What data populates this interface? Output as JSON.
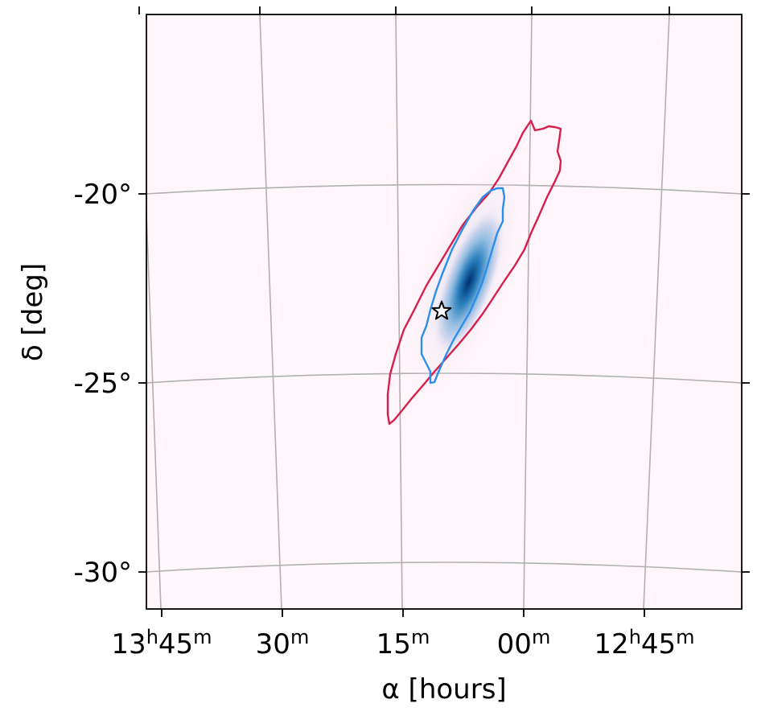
{
  "chart_data": {
    "type": "heatmap",
    "title": "",
    "xlabel": "α [hours]",
    "ylabel": "δ [deg]",
    "projection": "gnomonic sky map (RA/Dec)",
    "grid": true,
    "x_ticks": [
      {
        "value_hours": 13.75,
        "hours": "13",
        "minutes": "45"
      },
      {
        "value_hours": 13.5,
        "hours": "",
        "minutes": "30"
      },
      {
        "value_hours": 13.25,
        "hours": "",
        "minutes": "15"
      },
      {
        "value_hours": 13.0,
        "hours": "",
        "minutes": "00"
      },
      {
        "value_hours": 12.75,
        "hours": "12",
        "minutes": "45"
      }
    ],
    "y_ticks": [
      {
        "value": -20,
        "label": "-20°"
      },
      {
        "value": -25,
        "label": "-25°"
      },
      {
        "value": -30,
        "label": "-30°"
      }
    ],
    "density": {
      "colormap": "white-to-blue",
      "peak_ra_hours": 13.14,
      "peak_dec_deg": -22.6,
      "ra_extent_hours": [
        12.95,
        13.35
      ],
      "dec_extent_deg": [
        -26.0,
        -18.5
      ]
    },
    "contours": [
      {
        "level": "outer",
        "color": "#d6204b"
      },
      {
        "level": "inner",
        "color": "#2b8fea"
      }
    ],
    "marker": {
      "symbol": "star",
      "ra_hours": 13.17,
      "dec_deg": -23.1
    },
    "colors": {
      "background": "#fff5fa",
      "grid": "#b0b0b0",
      "density_peak": "#08306b",
      "outer_contour": "#d6204b",
      "inner_contour": "#2b8fea"
    }
  }
}
